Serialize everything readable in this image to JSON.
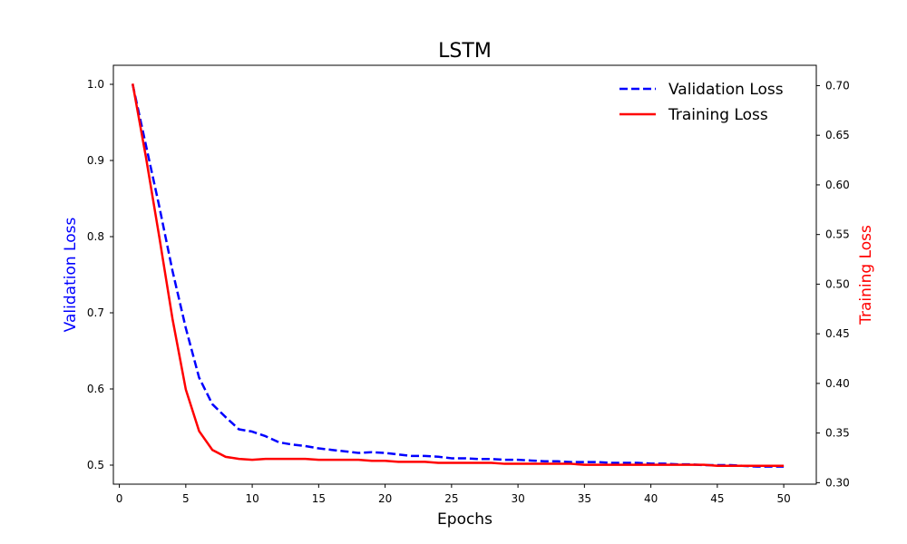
{
  "chart_data": {
    "type": "line",
    "title": "LSTM",
    "xlabel": "Epochs",
    "ylabel_left": "Validation Loss",
    "ylabel_right": "Training Loss",
    "xlim": [
      -0.45,
      52.45
    ],
    "ylim_left": [
      0.475,
      1.025
    ],
    "ylim_right": [
      0.2985,
      0.7205
    ],
    "xticks": [
      0,
      5,
      10,
      15,
      20,
      25,
      30,
      35,
      40,
      45,
      50
    ],
    "yticks_left": [
      0.5,
      0.6,
      0.7,
      0.8,
      0.9,
      1.0
    ],
    "yticks_right": [
      0.3,
      0.35,
      0.4,
      0.45,
      0.5,
      0.55,
      0.6,
      0.65,
      0.7
    ],
    "grid": false,
    "legend_position": "top-right",
    "colors": {
      "validation": "#0000ff",
      "training": "#ff0000"
    },
    "x": [
      1,
      2,
      3,
      4,
      5,
      6,
      7,
      8,
      9,
      10,
      11,
      12,
      13,
      14,
      15,
      16,
      17,
      18,
      19,
      20,
      21,
      22,
      23,
      24,
      25,
      26,
      27,
      28,
      29,
      30,
      31,
      32,
      33,
      34,
      35,
      36,
      37,
      38,
      39,
      40,
      41,
      42,
      43,
      44,
      45,
      46,
      47,
      48,
      49,
      50
    ],
    "series": [
      {
        "name": "Validation Loss",
        "axis": "left",
        "style": "dashed",
        "values": [
          1.0,
          0.92,
          0.84,
          0.755,
          0.68,
          0.615,
          0.58,
          0.563,
          0.547,
          0.544,
          0.538,
          0.53,
          0.527,
          0.525,
          0.522,
          0.52,
          0.518,
          0.516,
          0.517,
          0.516,
          0.514,
          0.512,
          0.512,
          0.511,
          0.509,
          0.509,
          0.508,
          0.508,
          0.507,
          0.507,
          0.506,
          0.505,
          0.505,
          0.504,
          0.504,
          0.504,
          0.503,
          0.503,
          0.503,
          0.502,
          0.502,
          0.501,
          0.501,
          0.5,
          0.5,
          0.5,
          0.499,
          0.498,
          0.498,
          0.498
        ]
      },
      {
        "name": "Training Loss",
        "axis": "right",
        "style": "solid",
        "values": [
          0.702,
          0.628,
          0.548,
          0.465,
          0.394,
          0.352,
          0.333,
          0.326,
          0.324,
          0.323,
          0.324,
          0.324,
          0.324,
          0.324,
          0.323,
          0.323,
          0.323,
          0.323,
          0.322,
          0.322,
          0.321,
          0.321,
          0.321,
          0.32,
          0.32,
          0.32,
          0.32,
          0.32,
          0.319,
          0.319,
          0.319,
          0.319,
          0.319,
          0.319,
          0.318,
          0.318,
          0.318,
          0.318,
          0.318,
          0.318,
          0.318,
          0.318,
          0.318,
          0.318,
          0.317,
          0.317,
          0.317,
          0.317,
          0.317,
          0.317
        ]
      }
    ]
  }
}
